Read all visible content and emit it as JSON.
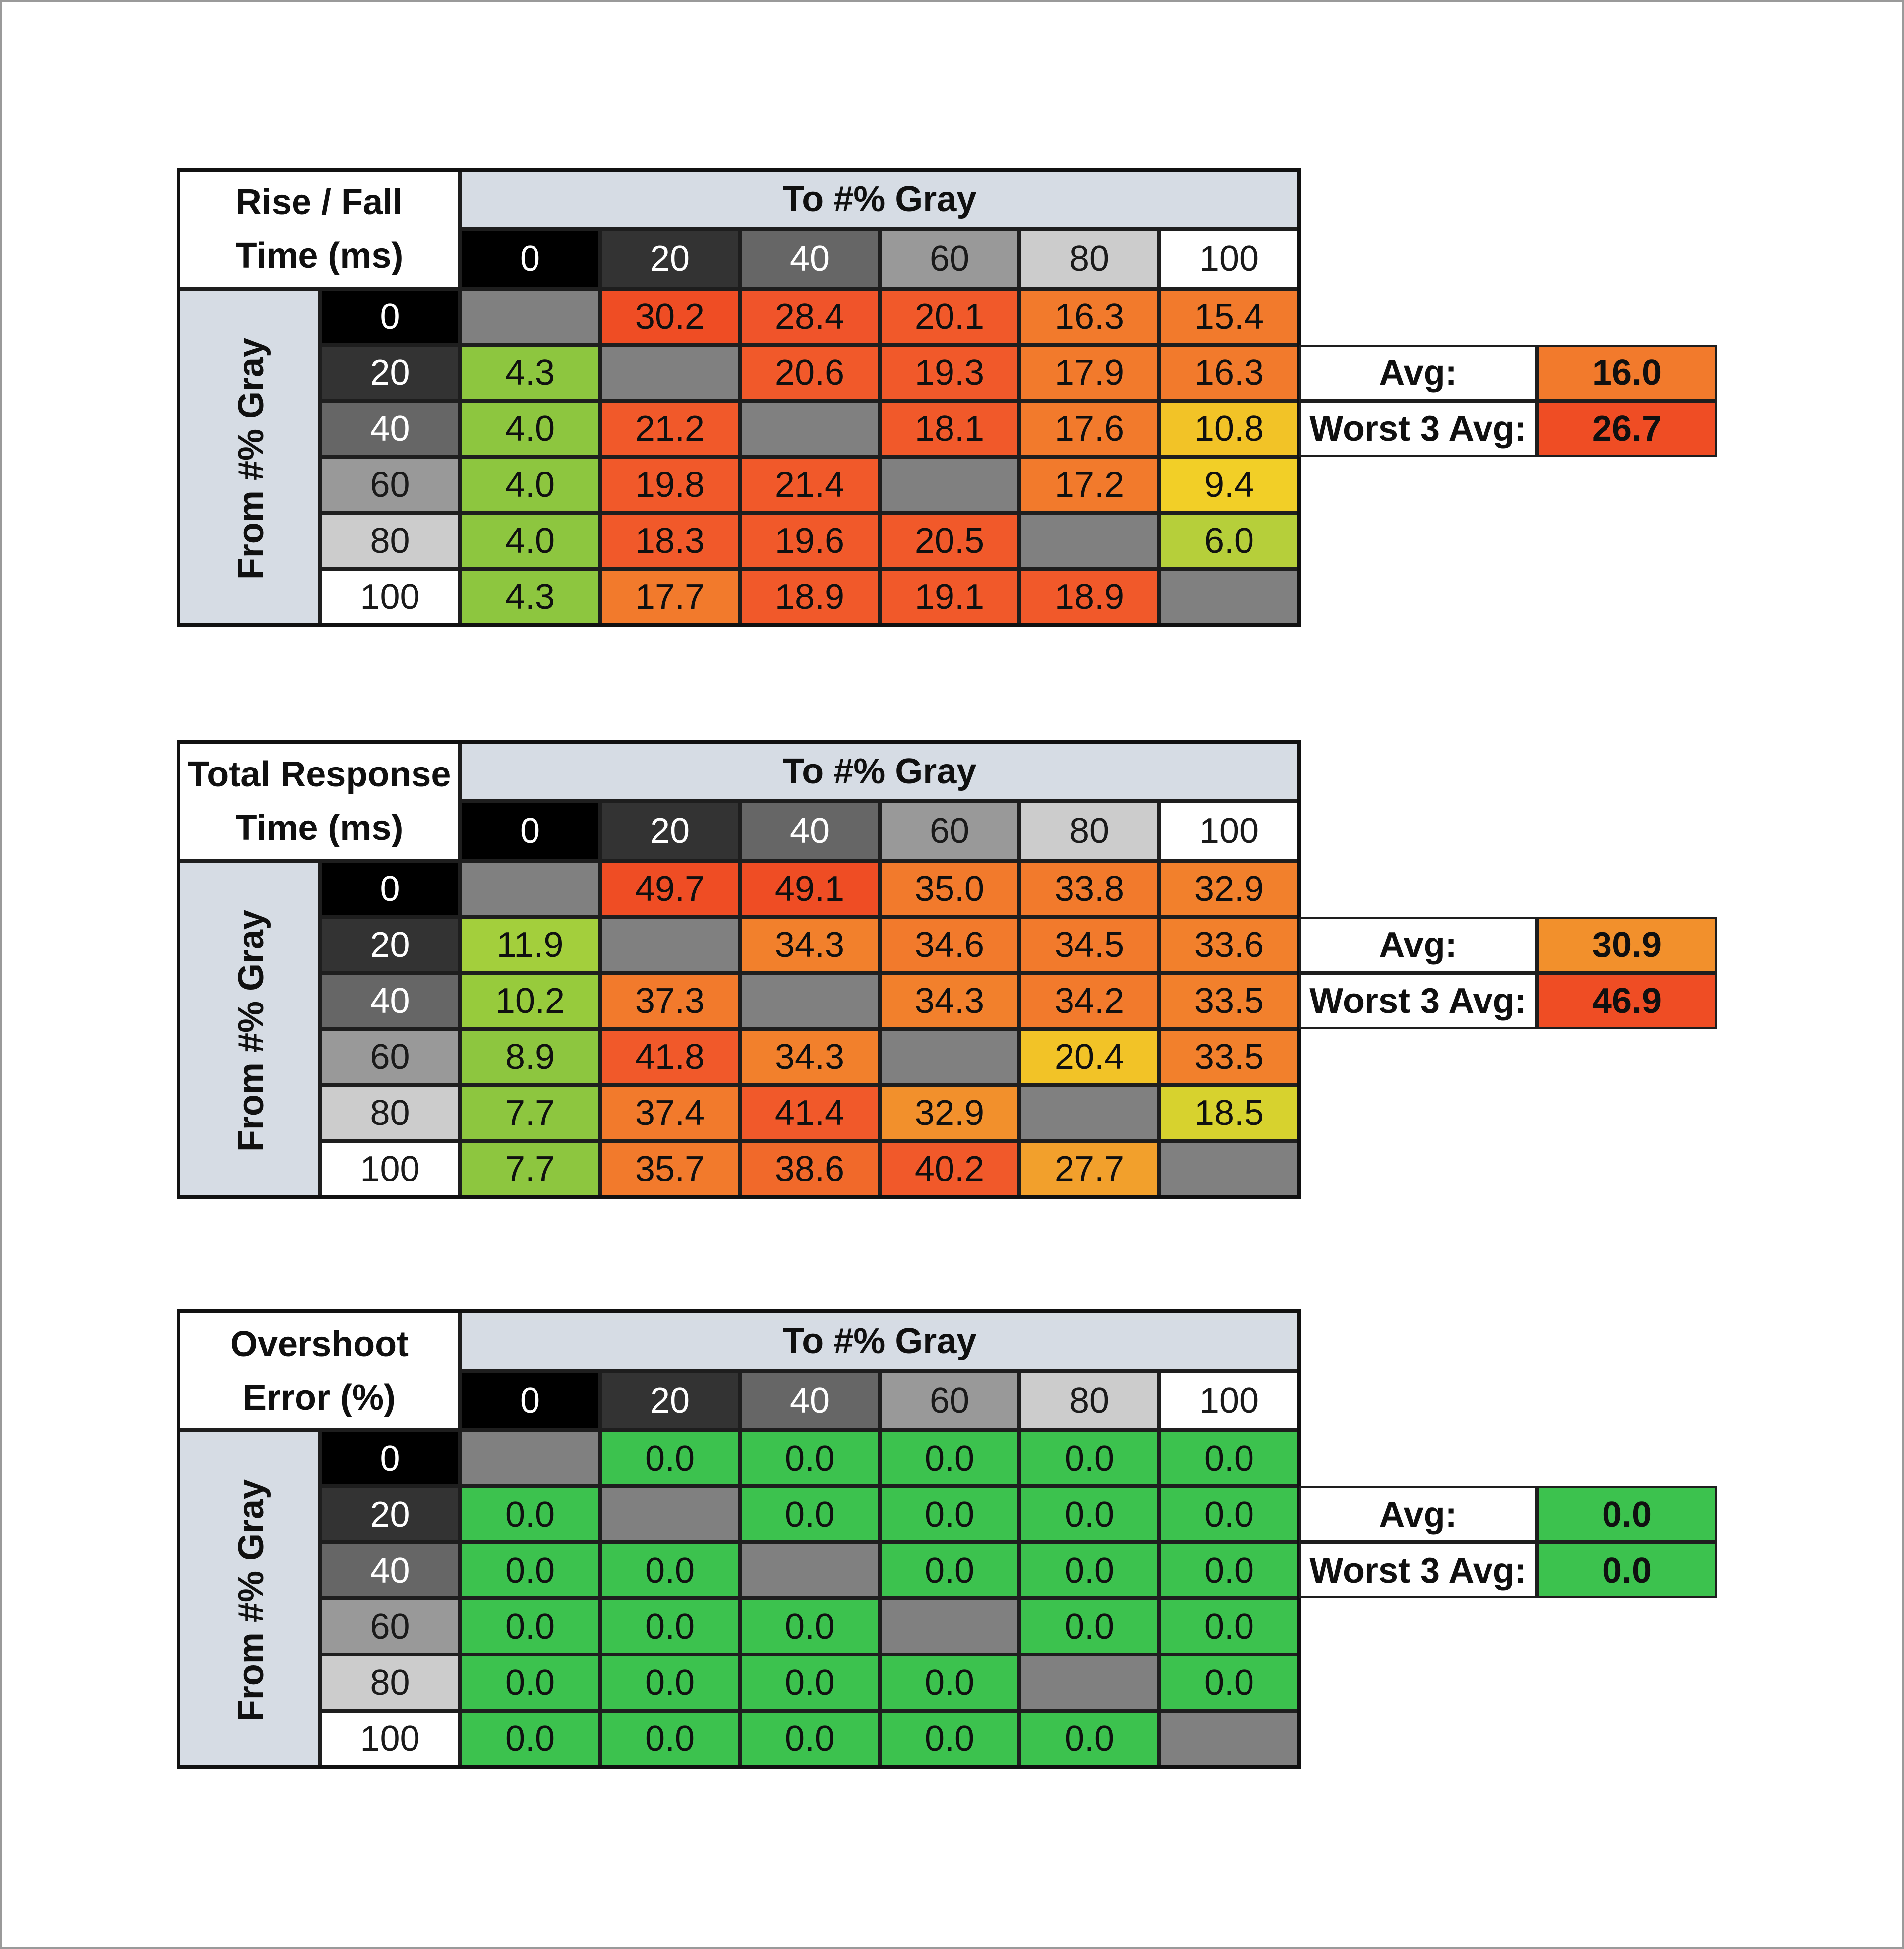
{
  "levels": [
    "0",
    "20",
    "40",
    "60",
    "80",
    "100"
  ],
  "level_colors": {
    "0": {
      "bg": "#000000",
      "fg": "#ffffff"
    },
    "20": {
      "bg": "#333333",
      "fg": "#ffffff"
    },
    "40": {
      "bg": "#666666",
      "fg": "#ffffff"
    },
    "60": {
      "bg": "#999999",
      "fg": "#1a1a1a"
    },
    "80": {
      "bg": "#cccccc",
      "fg": "#1a1a1a"
    },
    "100": {
      "bg": "#ffffff",
      "fg": "#1a1a1a"
    }
  },
  "diagonal_color": "#808080",
  "header_band_color": "#d6dce4",
  "chart_data": [
    {
      "type": "table",
      "title_lines": [
        "Rise / Fall",
        "Time (ms)"
      ],
      "col_group_label": "To #% Gray",
      "row_group_label": "From #% Gray",
      "from_levels": [
        "0",
        "20",
        "40",
        "60",
        "80",
        "100"
      ],
      "to_levels": [
        "0",
        "20",
        "40",
        "60",
        "80",
        "100"
      ],
      "values": [
        [
          null,
          "30.2",
          "28.4",
          "20.1",
          "16.3",
          "15.4"
        ],
        [
          "4.3",
          null,
          "20.6",
          "19.3",
          "17.9",
          "16.3"
        ],
        [
          "4.0",
          "21.2",
          null,
          "18.1",
          "17.6",
          "10.8"
        ],
        [
          "4.0",
          "19.8",
          "21.4",
          null,
          "17.2",
          "9.4"
        ],
        [
          "4.0",
          "18.3",
          "19.6",
          "20.5",
          null,
          "6.0"
        ],
        [
          "4.3",
          "17.7",
          "18.9",
          "19.1",
          "18.9",
          null
        ]
      ],
      "colors": [
        [
          null,
          "#ef4d24",
          "#f0542a",
          "#f1592a",
          "#f27a2c",
          "#f27a2c"
        ],
        [
          "#8dc63f",
          null,
          "#f1592a",
          "#f1592a",
          "#f27a2c",
          "#f27a2c"
        ],
        [
          "#8dc63f",
          "#f1592a",
          null,
          "#f1592a",
          "#f27a2c",
          "#f2c327"
        ],
        [
          "#8dc63f",
          "#f1592a",
          "#f1592a",
          null,
          "#f27a2c",
          "#f2cf27"
        ],
        [
          "#8dc63f",
          "#f1592a",
          "#f1592a",
          "#f1592a",
          null,
          "#b6cf3a"
        ],
        [
          "#8dc63f",
          "#f27a2c",
          "#f1592a",
          "#f1592a",
          "#f1592a",
          null
        ]
      ],
      "summary": {
        "avg_label": "Avg:",
        "avg_value": "16.0",
        "avg_color": "#f27a2c",
        "worst_label": "Worst 3 Avg:",
        "worst_value": "26.7",
        "worst_color": "#ef4d24"
      }
    },
    {
      "type": "table",
      "title_lines": [
        "Total Response",
        "Time (ms)"
      ],
      "col_group_label": "To #% Gray",
      "row_group_label": "From #% Gray",
      "from_levels": [
        "0",
        "20",
        "40",
        "60",
        "80",
        "100"
      ],
      "to_levels": [
        "0",
        "20",
        "40",
        "60",
        "80",
        "100"
      ],
      "values": [
        [
          null,
          "49.7",
          "49.1",
          "35.0",
          "33.8",
          "32.9"
        ],
        [
          "11.9",
          null,
          "34.3",
          "34.6",
          "34.5",
          "33.6"
        ],
        [
          "10.2",
          "37.3",
          null,
          "34.3",
          "34.2",
          "33.5"
        ],
        [
          "8.9",
          "41.8",
          "34.3",
          null,
          "20.4",
          "33.5"
        ],
        [
          "7.7",
          "37.4",
          "41.4",
          "32.9",
          null,
          "18.5"
        ],
        [
          "7.7",
          "35.7",
          "38.6",
          "40.2",
          "27.7",
          null
        ]
      ],
      "colors": [
        [
          null,
          "#ef4d24",
          "#ef4d24",
          "#f27a2c",
          "#f27a2c",
          "#f2802c"
        ],
        [
          "#a3cf3c",
          null,
          "#f2802c",
          "#f27a2c",
          "#f27a2c",
          "#f2802c"
        ],
        [
          "#97cb3c",
          "#f27a2c",
          null,
          "#f2802c",
          "#f27a2c",
          "#f2802c"
        ],
        [
          "#8dc63f",
          "#f1592a",
          "#f2802c",
          null,
          "#f2c327",
          "#f2802c"
        ],
        [
          "#8dc63f",
          "#f27a2c",
          "#f1592a",
          "#f2902c",
          null,
          "#d7d22e"
        ],
        [
          "#8dc63f",
          "#f27a2c",
          "#f1692a",
          "#f1592a",
          "#f2a02c",
          null
        ]
      ],
      "summary": {
        "avg_label": "Avg:",
        "avg_value": "30.9",
        "avg_color": "#f2902c",
        "worst_label": "Worst 3 Avg:",
        "worst_value": "46.9",
        "worst_color": "#ef4d24"
      }
    },
    {
      "type": "table",
      "title_lines": [
        "Overshoot",
        "Error (%)"
      ],
      "col_group_label": "To #% Gray",
      "row_group_label": "From #% Gray",
      "from_levels": [
        "0",
        "20",
        "40",
        "60",
        "80",
        "100"
      ],
      "to_levels": [
        "0",
        "20",
        "40",
        "60",
        "80",
        "100"
      ],
      "values": [
        [
          null,
          "0.0",
          "0.0",
          "0.0",
          "0.0",
          "0.0"
        ],
        [
          "0.0",
          null,
          "0.0",
          "0.0",
          "0.0",
          "0.0"
        ],
        [
          "0.0",
          "0.0",
          null,
          "0.0",
          "0.0",
          "0.0"
        ],
        [
          "0.0",
          "0.0",
          "0.0",
          null,
          "0.0",
          "0.0"
        ],
        [
          "0.0",
          "0.0",
          "0.0",
          "0.0",
          null,
          "0.0"
        ],
        [
          "0.0",
          "0.0",
          "0.0",
          "0.0",
          "0.0",
          null
        ]
      ],
      "colors": [
        [
          null,
          "#3cc24e",
          "#3cc24e",
          "#3cc24e",
          "#3cc24e",
          "#3cc24e"
        ],
        [
          "#3cc24e",
          null,
          "#3cc24e",
          "#3cc24e",
          "#3cc24e",
          "#3cc24e"
        ],
        [
          "#3cc24e",
          "#3cc24e",
          null,
          "#3cc24e",
          "#3cc24e",
          "#3cc24e"
        ],
        [
          "#3cc24e",
          "#3cc24e",
          "#3cc24e",
          null,
          "#3cc24e",
          "#3cc24e"
        ],
        [
          "#3cc24e",
          "#3cc24e",
          "#3cc24e",
          "#3cc24e",
          null,
          "#3cc24e"
        ],
        [
          "#3cc24e",
          "#3cc24e",
          "#3cc24e",
          "#3cc24e",
          "#3cc24e",
          null
        ]
      ],
      "summary": {
        "avg_label": "Avg:",
        "avg_value": "0.0",
        "avg_color": "#3cc24e",
        "worst_label": "Worst 3 Avg:",
        "worst_value": "0.0",
        "worst_color": "#3cc24e"
      }
    }
  ]
}
